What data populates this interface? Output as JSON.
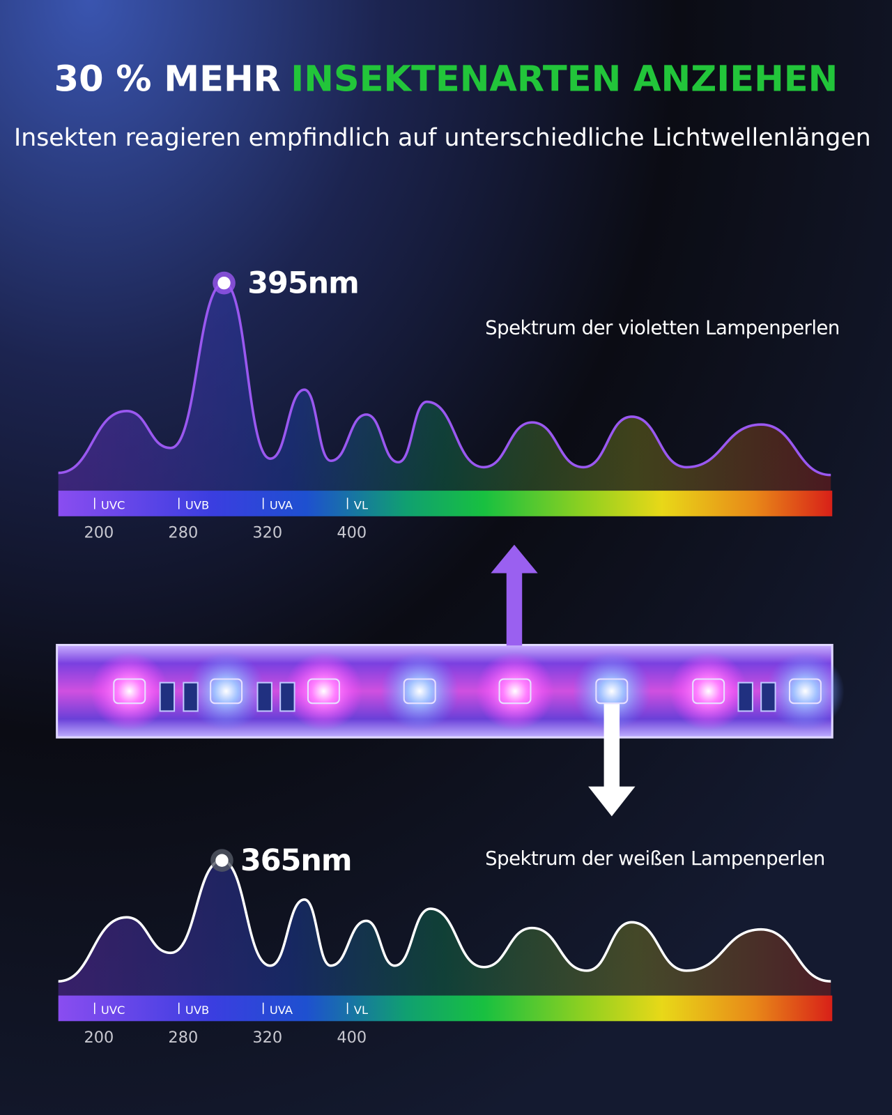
{
  "header": {
    "title_white": "30 % MEHR",
    "title_green": "INSEKTENARTEN ANZIEHEN",
    "subtitle": "Insekten reagieren empfindlich auf unterschiedliche Lichtwellenlängen"
  },
  "panels": [
    {
      "peak_label": "395nm",
      "caption": "Spektrum der violetten Lampenperlen",
      "bands": [
        "UVC",
        "UVB",
        "UVA",
        "VL"
      ],
      "wavelengths": [
        200,
        280,
        320,
        400
      ]
    },
    {
      "peak_label": "365nm",
      "caption": "Spektrum der weißen Lampenperlen",
      "bands": [
        "UVC",
        "UVB",
        "UVA",
        "VL"
      ],
      "wavelengths": [
        200,
        280,
        320,
        400
      ]
    }
  ]
}
